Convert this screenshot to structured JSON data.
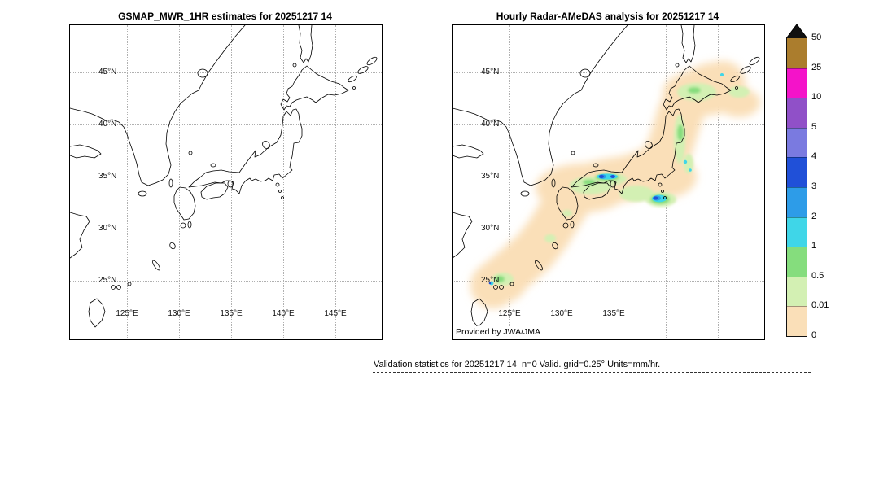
{
  "panels": [
    {
      "title": "GSMAP_MWR_1HR estimates for 20251217 14",
      "lat_ticks": [
        {
          "value": 45,
          "label": "45°N"
        },
        {
          "value": 40,
          "label": "40°N"
        },
        {
          "value": 35,
          "label": "35°N"
        },
        {
          "value": 30,
          "label": "30°N"
        },
        {
          "value": 25,
          "label": "25°N"
        }
      ],
      "lon_ticks": [
        {
          "value": 125,
          "label": "125°E"
        },
        {
          "value": 130,
          "label": "130°E"
        },
        {
          "value": 135,
          "label": "135°E"
        },
        {
          "value": 140,
          "label": "140°E"
        },
        {
          "value": 145,
          "label": "145°E"
        }
      ],
      "lat_grid": [
        45,
        40,
        35,
        30,
        25
      ],
      "lon_grid": [
        125,
        130,
        135,
        140,
        145
      ],
      "annotation": ""
    },
    {
      "title": "Hourly Radar-AMeDAS analysis for 20251217 14",
      "lat_ticks": [
        {
          "value": 45,
          "label": "45°N"
        },
        {
          "value": 40,
          "label": "40°N"
        },
        {
          "value": 35,
          "label": "35°N"
        },
        {
          "value": 30,
          "label": "30°N"
        },
        {
          "value": 25,
          "label": "25°N"
        }
      ],
      "lon_ticks": [
        {
          "value": 125,
          "label": "125°E"
        },
        {
          "value": 130,
          "label": "130°E"
        },
        {
          "value": 135,
          "label": "135°E"
        }
      ],
      "lat_grid": [
        45,
        40,
        35,
        30,
        25
      ],
      "lon_grid": [
        125,
        130,
        135,
        140,
        145
      ],
      "annotation": "Provided by JWA/JMA"
    }
  ],
  "colorbar": {
    "overflow_color": "#101010",
    "ticks": [
      "50",
      "25",
      "10",
      "5",
      "4",
      "3",
      "2",
      "1",
      "0.5",
      "0.01",
      "0"
    ],
    "colors_top_to_bottom": [
      "#ab7d2d",
      "#f413c9",
      "#9050c8",
      "#7a7ae0",
      "#2050d8",
      "#2d9ce8",
      "#3fd6e8",
      "#85dd7d",
      "#d3f0b3",
      "#fadfb8"
    ]
  },
  "footer": {
    "text": "Validation statistics for 20251217 14  n=0 Valid. grid=0.25° Units=mm/hr."
  },
  "chart_data": [
    {
      "type": "heatmap",
      "title": "GSMAP_MWR_1HR estimates for 20251217 14",
      "x_ticks": [
        "125°E",
        "130°E",
        "135°E",
        "140°E",
        "145°E"
      ],
      "y_ticks": [
        "45°N",
        "40°N",
        "35°N",
        "30°N",
        "25°N"
      ],
      "xlim_deg_east": [
        119.5,
        149.5
      ],
      "ylim_deg_north": [
        19.5,
        49.5
      ],
      "units": "mm/hr",
      "grid": "dotted, every 5 degrees",
      "values": "empty map of Japan region; no precipitation estimates plotted (n=0)"
    },
    {
      "type": "heatmap",
      "title": "Hourly Radar-AMeDAS analysis for 20251217 14",
      "x_ticks": [
        "125°E",
        "130°E",
        "135°E"
      ],
      "y_ticks": [
        "45°N",
        "40°N",
        "35°N",
        "30°N",
        "25°N"
      ],
      "xlim_deg_east": [
        119.5,
        149.5
      ],
      "ylim_deg_north": [
        19.5,
        49.5
      ],
      "units": "mm/hr",
      "annotation": "Provided by JWA/JMA",
      "values": "broad band of trace-to-light precipitation (0-0.5 mm/hr, tan and pale green) along the entire Japanese archipelago from the Sakishima/Okinawa islands through Kyushu, Shikoku and Honshu up to Hokkaido; embedded 1-2 mm/hr (cyan) and 2-4 mm/hr (blue) cells along the San-in coast near 35.2N 134E; strongest cell 3-5 mm/hr (dark blue) south of the Kii Peninsula near 33.8N 135.8E; scattered 0.5-2 mm/hr cells over Tohoku, Hokkaido and near Ishigaki"
    }
  ],
  "colorbar_scale": {
    "levels_mm_per_hr": [
      0,
      0.01,
      0.5,
      1,
      2,
      3,
      4,
      5,
      10,
      25,
      50
    ],
    "overflow": ">50"
  }
}
